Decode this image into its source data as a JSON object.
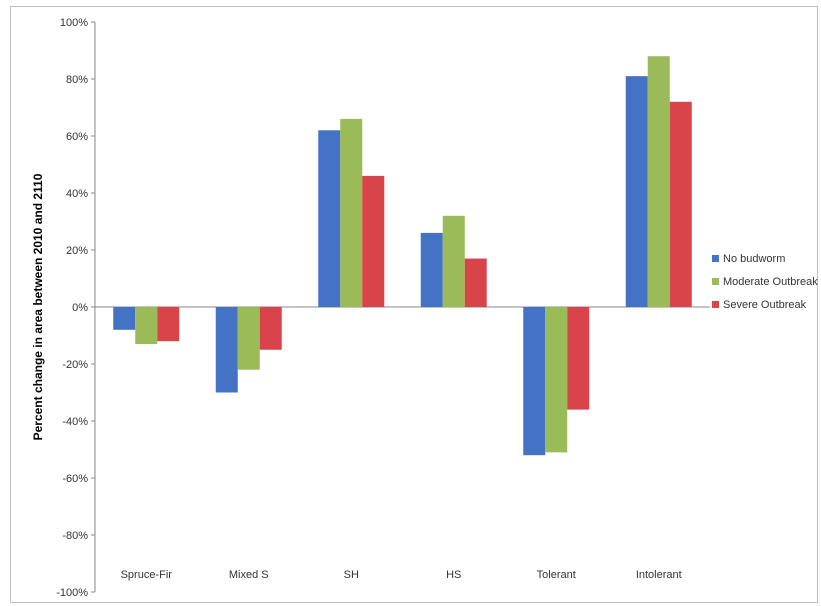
{
  "chart_data": {
    "type": "bar",
    "title": "",
    "xlabel": "",
    "ylabel": "Percent change in area between 2010 and 2110",
    "ylim": [
      -100,
      100
    ],
    "yticks": [
      "100%",
      "80%",
      "60%",
      "40%",
      "20%",
      "0%",
      "-20%",
      "-40%",
      "-60%",
      "-80%",
      "-100%"
    ],
    "categories": [
      "Spruce-Fir",
      "Mixed S",
      "SH",
      "HS",
      "Tolerant",
      "Intolerant"
    ],
    "series": [
      {
        "name": "No budworm",
        "color": "#4472c4",
        "values": [
          -8,
          -30,
          62,
          26,
          -52,
          81
        ]
      },
      {
        "name": "Moderate Outbreak",
        "color": "#9bbb59",
        "values": [
          -13,
          -22,
          66,
          32,
          -51,
          88
        ]
      },
      {
        "name": "Severe Outbreak",
        "color": "#d9434a",
        "values": [
          -12,
          -15,
          46,
          17,
          -36,
          72
        ]
      }
    ],
    "grid": false,
    "legend_position": "right"
  }
}
